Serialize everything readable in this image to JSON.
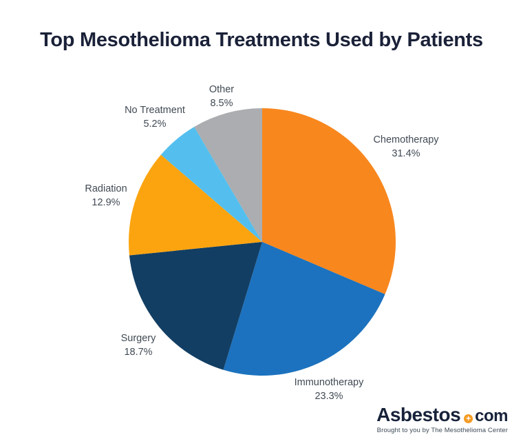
{
  "header": {
    "title": "Top Mesothelioma Treatments Used by Patients"
  },
  "chart_data": {
    "type": "pie",
    "title": "Top Mesothelioma Treatments Used by Patients",
    "unit": "%",
    "start_angle_deg": 0,
    "direction": "clockwise",
    "legend_position": "labels-around-slices",
    "slices": [
      {
        "label": "Chemotherapy",
        "value": 31.4,
        "pct_label": "31.4%",
        "color": "#F8871E"
      },
      {
        "label": "Immunotherapy",
        "value": 23.3,
        "pct_label": "23.3%",
        "color": "#1C72BE"
      },
      {
        "label": "Surgery",
        "value": 18.7,
        "pct_label": "18.7%",
        "color": "#123E63"
      },
      {
        "label": "Radiation",
        "value": 12.9,
        "pct_label": "12.9%",
        "color": "#FCA40F"
      },
      {
        "label": "No Treatment",
        "value": 5.2,
        "pct_label": "5.2%",
        "color": "#54BFEE"
      },
      {
        "label": "Other",
        "value": 8.5,
        "pct_label": "8.5%",
        "color": "#ABADB0"
      }
    ]
  },
  "branding": {
    "logo_text_primary": "Asbestos",
    "logo_suffix": "com",
    "plus_icon_glyph": "+",
    "plus_icon_color": "#F59B23",
    "logo_text_color": "#17223A",
    "tagline": "Brought to you by The Mesothelioma Center"
  },
  "colors": {
    "background": "#FFFFFF",
    "title_text": "#1A2138",
    "label_text": "#414A54"
  }
}
